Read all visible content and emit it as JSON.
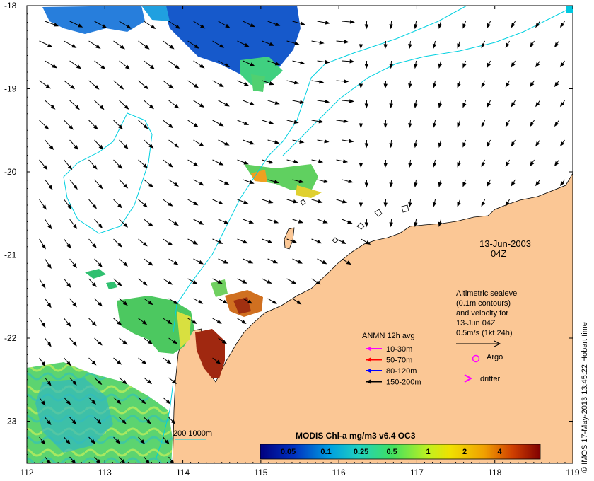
{
  "map": {
    "lon_ticks": [
      "112",
      "113",
      "114",
      "115",
      "116",
      "117",
      "118",
      "119"
    ],
    "lat_ticks": [
      "-18",
      "-19",
      "-20",
      "-21",
      "-22",
      "-23"
    ],
    "land_color": "#fbc795",
    "contour_color": "#00d0e0"
  },
  "date": {
    "date": "13-Jun-2003",
    "time": "04Z"
  },
  "altimetry_note": {
    "line1": "Altimetric sealevel",
    "line2": "(0.1m contours)",
    "line3": "and velocity for",
    "line4": "13-Jun 04Z",
    "line5": "0.5m/s (1kt 24h)"
  },
  "anmn": {
    "title": "ANMN 12h avg",
    "items": [
      {
        "label": "10-30m",
        "color": "#ff00ff"
      },
      {
        "label": "50-70m",
        "color": "#ff0000"
      },
      {
        "label": "80-120m",
        "color": "#0000ff"
      },
      {
        "label": "150-200m",
        "color": "#000000"
      }
    ]
  },
  "markers": {
    "argo": "Argo",
    "argo_color": "#ff00ff",
    "drifter": "drifter",
    "drifter_color": "#ff00ff"
  },
  "bathy": {
    "label": "200  1000m"
  },
  "colorbar": {
    "title": "MODIS Chl-a mg/m3 v6.4 OC3",
    "ticks": [
      "0.05",
      "0.1",
      "0.25",
      "0.5",
      "1",
      "2",
      "4"
    ]
  },
  "credit": "© IMOS 17-May-2013 13:45:22 Hobart time"
}
